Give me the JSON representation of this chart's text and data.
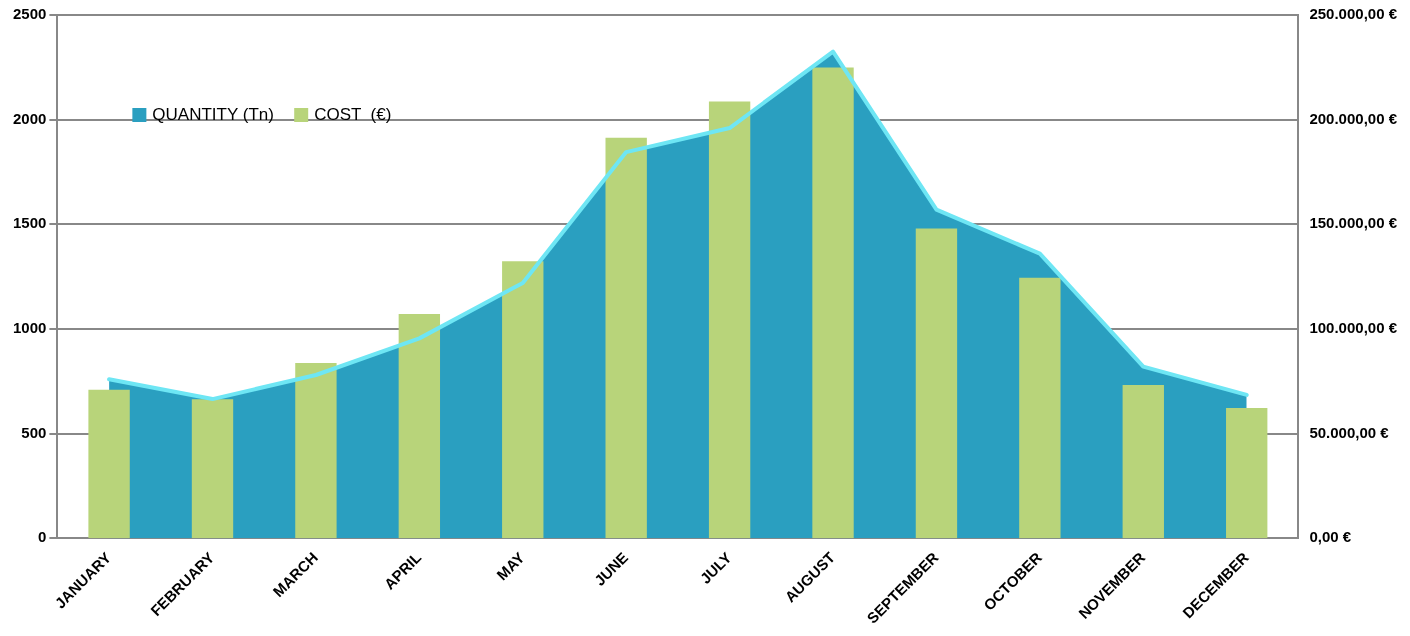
{
  "chart_data": {
    "type": "bar",
    "categories": [
      "JANUARY",
      "FEBRUARY",
      "MARCH",
      "APRIL",
      "MAY",
      "JUNE",
      "JULY",
      "AUGUST",
      "SEPTEMBER",
      "OCTOBER",
      "NOVEMBER",
      "DECEMBER"
    ],
    "series": [
      {
        "name": "QUANTITY (Tn)",
        "type": "area",
        "color": "#2a9fc0",
        "values": [
          760,
          665,
          780,
          955,
          1220,
          1845,
          1960,
          2325,
          1570,
          1360,
          820,
          685
        ]
      },
      {
        "name": "COST  (€)",
        "axis": "y2",
        "color": "#b8d47a",
        "values": [
          71000,
          66400,
          83700,
          107200,
          132300,
          191400,
          208700,
          224900,
          148000,
          124500,
          73200,
          62200
        ]
      }
    ],
    "ylim": [
      0,
      2500
    ],
    "yticks": [
      0,
      500,
      1000,
      1500,
      2000,
      2500
    ],
    "y2lim": [
      0,
      250000
    ],
    "y2ticks": [
      {
        "value": 0,
        "label": "0,00 €"
      },
      {
        "value": 50000,
        "label": "50.000,00 €"
      },
      {
        "value": 100000,
        "label": "100.000,00 €"
      },
      {
        "value": 150000,
        "label": "150.000,00 €"
      },
      {
        "value": 200000,
        "label": "200.000,00 €"
      },
      {
        "value": 250000,
        "label": "250.000,00 €"
      }
    ],
    "grid": "y",
    "legend": "top left"
  }
}
